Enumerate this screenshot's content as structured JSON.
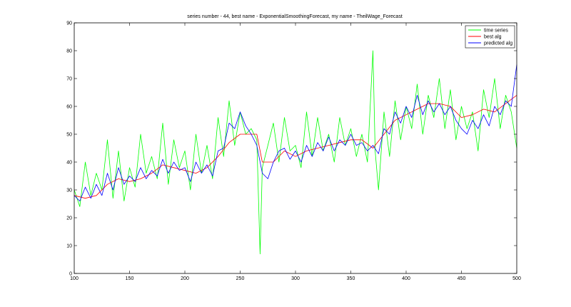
{
  "chart_data": {
    "type": "line",
    "title": "series number - 44, best name - ExponentialSmoothingForecast, my name - TheilWage_Forecast",
    "xlabel": "",
    "ylabel": "",
    "xlim": [
      100,
      500
    ],
    "ylim": [
      0,
      90
    ],
    "x_ticks": [
      100,
      150,
      200,
      250,
      300,
      350,
      400,
      450,
      500
    ],
    "y_ticks": [
      0,
      10,
      20,
      30,
      40,
      50,
      60,
      70,
      80,
      90
    ],
    "grid": false,
    "legend_position": "top-right",
    "series": [
      {
        "name": "time series",
        "color": "#00ff00",
        "x": [
          100,
          105,
          110,
          115,
          120,
          125,
          130,
          135,
          140,
          145,
          150,
          155,
          160,
          165,
          170,
          175,
          180,
          185,
          190,
          195,
          200,
          205,
          210,
          215,
          220,
          225,
          230,
          235,
          240,
          245,
          250,
          255,
          260,
          265,
          268,
          270,
          275,
          280,
          285,
          290,
          295,
          300,
          305,
          310,
          315,
          320,
          325,
          330,
          335,
          340,
          345,
          350,
          355,
          360,
          365,
          370,
          372,
          375,
          380,
          385,
          390,
          395,
          400,
          405,
          410,
          415,
          420,
          425,
          430,
          435,
          440,
          445,
          450,
          455,
          460,
          465,
          470,
          475,
          480,
          485,
          490,
          495,
          500
        ],
        "values": [
          30,
          24,
          40,
          28,
          36,
          30,
          48,
          27,
          44,
          26,
          38,
          31,
          50,
          36,
          42,
          34,
          54,
          32,
          48,
          38,
          44,
          30,
          50,
          36,
          46,
          34,
          56,
          42,
          62,
          46,
          58,
          50,
          52,
          48,
          7,
          38,
          46,
          54,
          40,
          56,
          44,
          46,
          38,
          58,
          42,
          56,
          44,
          50,
          40,
          56,
          46,
          52,
          42,
          50,
          40,
          80,
          44,
          30,
          58,
          42,
          62,
          48,
          60,
          52,
          68,
          50,
          64,
          56,
          70,
          52,
          66,
          48,
          60,
          52,
          58,
          44,
          66,
          56,
          70,
          52,
          64,
          58,
          45
        ]
      },
      {
        "name": "best alg",
        "color": "#ff0000",
        "x": [
          100,
          110,
          120,
          130,
          140,
          150,
          160,
          170,
          180,
          190,
          200,
          210,
          220,
          230,
          240,
          250,
          260,
          265,
          270,
          280,
          290,
          300,
          310,
          320,
          330,
          340,
          350,
          360,
          370,
          380,
          390,
          400,
          410,
          420,
          430,
          440,
          450,
          460,
          470,
          480,
          490,
          500
        ],
        "values": [
          28,
          27,
          28,
          32,
          34,
          33,
          34,
          36,
          39,
          38,
          37,
          36,
          38,
          42,
          47,
          50,
          50,
          50,
          40,
          40,
          44,
          42,
          44,
          45,
          46,
          47,
          48,
          48,
          45,
          50,
          55,
          57,
          59,
          61,
          61,
          60,
          56,
          57,
          59,
          58,
          61,
          64
        ]
      },
      {
        "name": "predicted alg",
        "color": "#0000ff",
        "x": [
          100,
          105,
          110,
          115,
          120,
          125,
          130,
          135,
          140,
          145,
          150,
          155,
          160,
          165,
          170,
          175,
          180,
          185,
          190,
          195,
          200,
          205,
          210,
          215,
          220,
          225,
          230,
          235,
          240,
          245,
          250,
          255,
          260,
          265,
          270,
          275,
          280,
          285,
          290,
          295,
          300,
          305,
          310,
          315,
          320,
          325,
          330,
          335,
          340,
          345,
          350,
          355,
          360,
          365,
          370,
          375,
          380,
          385,
          390,
          395,
          400,
          405,
          410,
          415,
          420,
          425,
          430,
          435,
          440,
          445,
          450,
          455,
          460,
          465,
          470,
          475,
          480,
          485,
          490,
          495,
          500
        ],
        "values": [
          28,
          26,
          31,
          27,
          32,
          28,
          36,
          30,
          38,
          32,
          35,
          33,
          38,
          34,
          37,
          35,
          41,
          36,
          40,
          37,
          38,
          33,
          40,
          36,
          39,
          35,
          44,
          45,
          54,
          52,
          58,
          53,
          50,
          46,
          36,
          34,
          40,
          44,
          45,
          41,
          44,
          40,
          46,
          42,
          47,
          44,
          49,
          44,
          48,
          46,
          50,
          46,
          47,
          44,
          46,
          43,
          52,
          50,
          58,
          54,
          60,
          56,
          64,
          57,
          62,
          58,
          61,
          57,
          60,
          55,
          52,
          50,
          55,
          52,
          57,
          53,
          60,
          57,
          62,
          60,
          75
        ]
      }
    ]
  }
}
